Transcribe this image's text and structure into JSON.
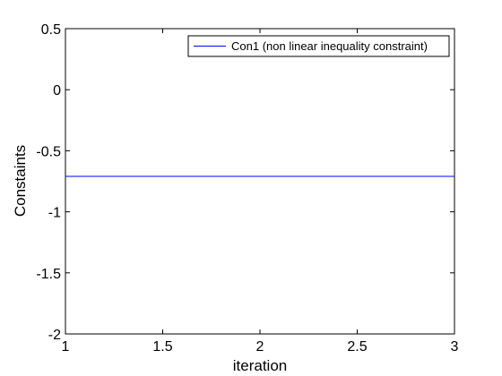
{
  "chart_data": {
    "type": "line",
    "title": "",
    "xlabel": "iteration",
    "ylabel": "Constaints",
    "xlim": [
      1,
      3
    ],
    "ylim": [
      -2,
      0.5
    ],
    "xticks": [
      1,
      1.5,
      2,
      2.5,
      3
    ],
    "xtick_labels": [
      "1",
      "1.5",
      "2",
      "2.5",
      "3"
    ],
    "yticks": [
      -2,
      -1.5,
      -1,
      -0.5,
      0,
      0.5
    ],
    "ytick_labels": [
      "-2",
      "-1.5",
      "-1",
      "-0.5",
      "0",
      "0.5"
    ],
    "grid": false,
    "legend_position": "top-right",
    "series": [
      {
        "name": "Con1 (non linear inequality constraint)",
        "color": "#0000ff",
        "x": [
          1,
          2,
          3
        ],
        "y": [
          -0.71,
          -0.71,
          -0.71
        ]
      }
    ]
  }
}
